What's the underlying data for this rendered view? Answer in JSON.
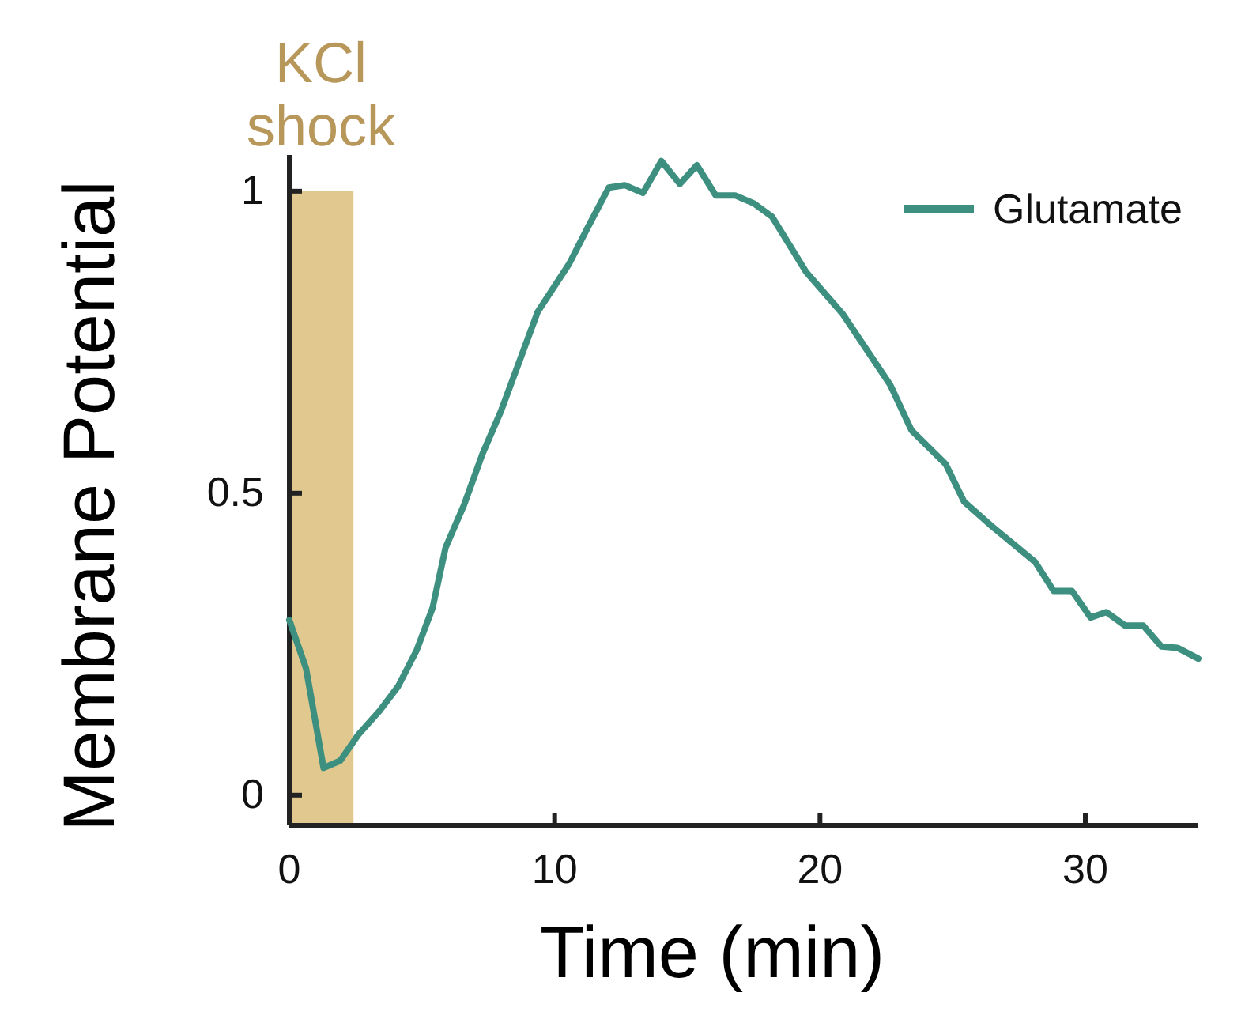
{
  "chart_data": {
    "type": "line",
    "xlabel": "Time (min)",
    "ylabel": "Membrane Potential",
    "xlim": [
      0,
      34.26
    ],
    "ylim": [
      -0.05,
      1.06
    ],
    "xticks": [
      0,
      10,
      20,
      30
    ],
    "yticks": [
      0,
      0.5,
      1
    ],
    "legend": "top right",
    "grid": false,
    "bands": [
      {
        "axis": "x",
        "from": 0,
        "to": 2.42,
        "label": "KCl shock",
        "color": "#e0c88f"
      }
    ],
    "series": [
      {
        "name": "Glutamate",
        "color": "#3d8f80",
        "x": [
          0,
          0.63,
          1.29,
          1.92,
          2.6,
          3.41,
          4.1,
          4.8,
          5.4,
          5.89,
          6.58,
          7.28,
          7.97,
          8.77,
          9.36,
          10.55,
          11.25,
          12.04,
          12.64,
          13.33,
          14.02,
          14.72,
          15.36,
          16.07,
          16.8,
          17.5,
          18.19,
          19.48,
          20.87,
          22.65,
          23.45,
          24.74,
          25.43,
          26.43,
          28.11,
          28.81,
          29.5,
          30.2,
          30.79,
          31.49,
          32.18,
          32.87,
          33.47,
          34.26
        ],
        "values": [
          0.29,
          0.21,
          0.045,
          0.057,
          0.1,
          0.14,
          0.18,
          0.24,
          0.31,
          0.41,
          0.48,
          0.565,
          0.635,
          0.73,
          0.8,
          0.88,
          0.94,
          1.006,
          1.01,
          0.997,
          1.05,
          1.012,
          1.043,
          0.993,
          0.993,
          0.98,
          0.958,
          0.866,
          0.796,
          0.679,
          0.604,
          0.548,
          0.486,
          0.447,
          0.386,
          0.338,
          0.338,
          0.294,
          0.303,
          0.281,
          0.281,
          0.246,
          0.244,
          0.226
        ]
      }
    ]
  }
}
